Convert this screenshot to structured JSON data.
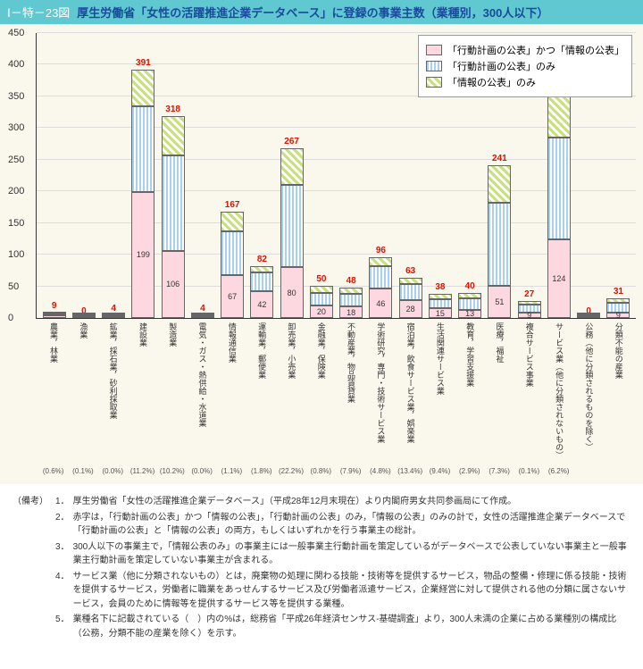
{
  "title": {
    "id": "Ⅰ－特－23図",
    "text": "厚生労働省「女性の活躍推進企業データベース」に登録の事業主数（業種別，300人以下）"
  },
  "chart": {
    "type": "stacked-bar",
    "ylim": [
      0,
      450
    ],
    "ytick_step": 50,
    "background": "#faf7ed",
    "series_colors": [
      "#fdd8e0",
      "#a8d0f0",
      "#c8e080"
    ],
    "legend": [
      "「行動計画の公表」かつ「情報の公表」",
      "「行動計画の公表」のみ",
      "「情報の公表」のみ"
    ],
    "categories": [
      {
        "label": "農業，林業",
        "pct": "(0.6%)",
        "total": 9,
        "segs": [
          4,
          3,
          2
        ]
      },
      {
        "label": "漁業",
        "pct": "(0.1%)",
        "total": 0,
        "segs": [
          0,
          0,
          0
        ]
      },
      {
        "label": "鉱業，採石業，砂利採取業",
        "pct": "(0.0%)",
        "total": 4,
        "segs": [
          1,
          2,
          1
        ]
      },
      {
        "label": "建設業",
        "pct": "(11.2%)",
        "total": 391,
        "segs": [
          199,
          135,
          57
        ]
      },
      {
        "label": "製造業",
        "pct": "(10.2%)",
        "total": 318,
        "segs": [
          106,
          150,
          62
        ]
      },
      {
        "label": "電気・ガス・熱供給・水道業",
        "pct": "(0.0%)",
        "total": 4,
        "segs": [
          2,
          1,
          1
        ]
      },
      {
        "label": "情報通信業",
        "pct": "(1.1%)",
        "total": 167,
        "segs": [
          67,
          70,
          30
        ]
      },
      {
        "label": "運輸業，郵便業",
        "pct": "(1.8%)",
        "total": 82,
        "segs": [
          42,
          30,
          10
        ]
      },
      {
        "label": "卸売業，小売業",
        "pct": "(22.2%)",
        "total": 267,
        "segs": [
          80,
          130,
          57
        ]
      },
      {
        "label": "金融業，保険業",
        "pct": "(0.8%)",
        "total": 50,
        "segs": [
          20,
          20,
          10
        ]
      },
      {
        "label": "不動産業，物品賃貸業",
        "pct": "(7.9%)",
        "total": 48,
        "segs": [
          18,
          20,
          10
        ]
      },
      {
        "label": "学術研究，専門・技術サービス業",
        "pct": "(4.8%)",
        "total": 96,
        "segs": [
          46,
          35,
          15
        ]
      },
      {
        "label": "宿泊業，飲食サービス業，娯楽業",
        "pct": "(13.4%)",
        "total": 63,
        "segs": [
          28,
          25,
          10
        ]
      },
      {
        "label": "生活関連サービス業",
        "pct": "(9.4%)",
        "total": 38,
        "segs": [
          15,
          15,
          8
        ]
      },
      {
        "label": "教育，学習支援業",
        "pct": "(2.9%)",
        "total": 40,
        "segs": [
          13,
          18,
          9
        ]
      },
      {
        "label": "医療，福祉",
        "pct": "(7.3%)",
        "total": 241,
        "segs": [
          51,
          130,
          60
        ]
      },
      {
        "label": "複合サービス事業",
        "pct": "(0.1%)",
        "total": 27,
        "segs": [
          9,
          12,
          6
        ]
      },
      {
        "label": "サービス業（他に分類されないもの）",
        "pct": "(6.2%)",
        "total": 366,
        "segs": [
          124,
          160,
          82
        ]
      },
      {
        "label": "公務（他に分類されるものを除く）",
        "pct": "",
        "total": 0,
        "segs": [
          0,
          0,
          0
        ]
      },
      {
        "label": "分類不能の産業",
        "pct": "",
        "total": 31,
        "segs": [
          9,
          15,
          7
        ]
      }
    ]
  },
  "notes": {
    "label": "（備考）",
    "items": [
      "厚生労働省「女性の活躍推進企業データベース」（平成28年12月末現在）より内閣府男女共同参画局にて作成。",
      "赤字は，「行動計画の公表」かつ「情報の公表」，「行動計画の公表」のみ，「情報の公表」のみの計で，女性の活躍推進企業データベースで「行動計画の公表」と「情報の公表」の両方，もしくはいずれかを行う事業主の総計。",
      "300人以下の事業主で，「情報公表のみ」の事業主には一般事業主行動計画を策定しているがデータベースで公表していない事業主と一般事業主行動計画を策定していない事業主が含まれる。",
      "サービス業（他に分類されないもの）とは，廃棄物の処理に関わる技能・技術等を提供するサービス，物品の整備・修理に係る技能・技術を提供するサービス，労働者に職業をあっせんするサービス及び労働者派遣サービス，企業経営に対して提供される他の分類に属さないサービス，会員のために情報等を提供するサービス等を提供する業種。",
      "業種名下に記載されている（　）内の%は，総務省「平成26年経済センサス-基礎調査」より，300人未満の企業に占める業種別の構成比（公務，分類不能の産業を除く）を示す。"
    ]
  }
}
